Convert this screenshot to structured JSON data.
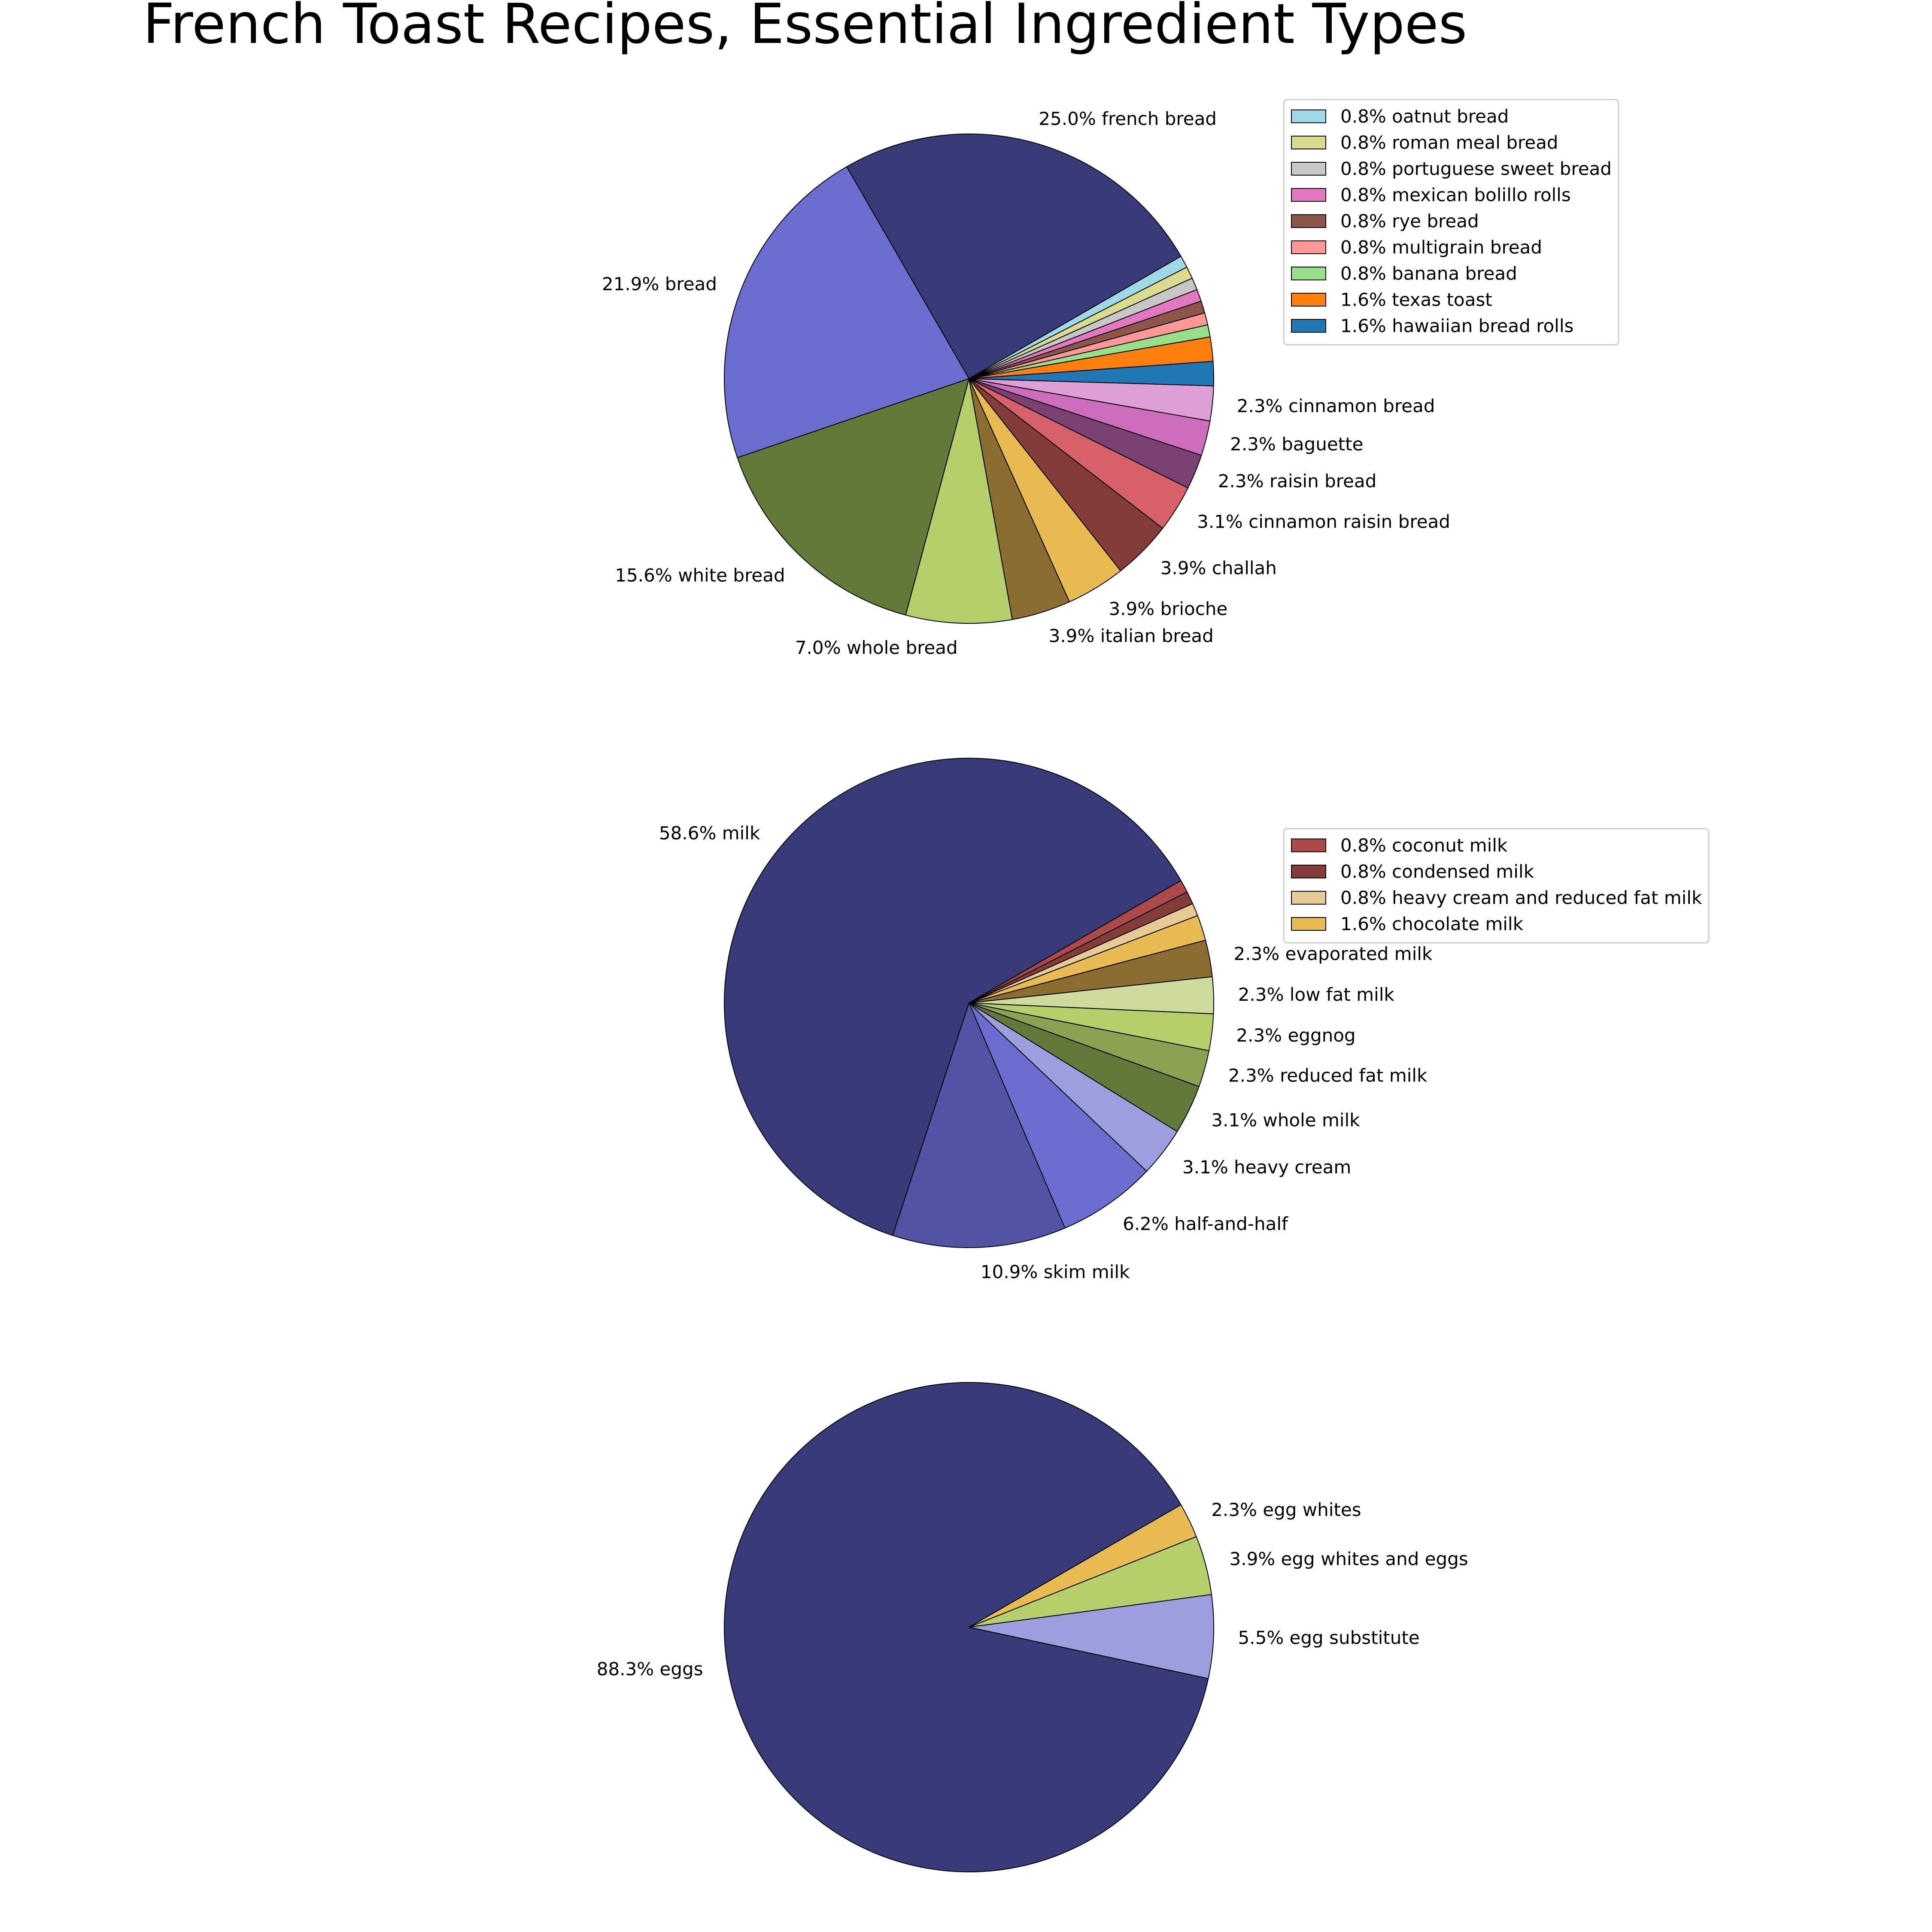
{
  "title": "French Toast Recipes, Essential Ingredient Types",
  "chart_data": [
    {
      "type": "pie",
      "slices": [
        {
          "label": "25.0% french bread",
          "value": 25.0,
          "color": "#393b79",
          "in_legend": false
        },
        {
          "label": "21.9% bread",
          "value": 21.9,
          "color": "#6b6ecf",
          "in_legend": false
        },
        {
          "label": "15.6% white bread",
          "value": 15.6,
          "color": "#637939",
          "in_legend": false
        },
        {
          "label": "7.0% whole bread",
          "value": 7.0,
          "color": "#b5cf6b",
          "in_legend": false
        },
        {
          "label": "3.9% italian bread",
          "value": 3.9,
          "color": "#8c6d31",
          "in_legend": false
        },
        {
          "label": "3.9% brioche",
          "value": 3.9,
          "color": "#e7ba52",
          "in_legend": false
        },
        {
          "label": "3.9% challah",
          "value": 3.9,
          "color": "#843c39",
          "in_legend": false
        },
        {
          "label": "3.1% cinnamon raisin bread",
          "value": 3.1,
          "color": "#d6616b",
          "in_legend": false
        },
        {
          "label": "2.3% raisin bread",
          "value": 2.3,
          "color": "#7b4173",
          "in_legend": false
        },
        {
          "label": "2.3% baguette",
          "value": 2.3,
          "color": "#ce6dbd",
          "in_legend": false
        },
        {
          "label": "2.3% cinnamon bread",
          "value": 2.3,
          "color": "#de9ed6",
          "in_legend": false
        },
        {
          "label": "1.6% hawaiian bread rolls",
          "value": 1.6,
          "color": "#1f77b4",
          "in_legend": true
        },
        {
          "label": "1.6% texas toast",
          "value": 1.6,
          "color": "#ff7f0e",
          "in_legend": true
        },
        {
          "label": "0.8% banana bread",
          "value": 0.8,
          "color": "#98df8a",
          "in_legend": true
        },
        {
          "label": "0.8% multigrain bread",
          "value": 0.8,
          "color": "#ff9896",
          "in_legend": true
        },
        {
          "label": "0.8% rye bread",
          "value": 0.8,
          "color": "#8c564b",
          "in_legend": true
        },
        {
          "label": "0.8% mexican bolillo rolls",
          "value": 0.8,
          "color": "#e377c2",
          "in_legend": true
        },
        {
          "label": "0.8% portuguese sweet bread",
          "value": 0.8,
          "color": "#c7c7c7",
          "in_legend": true
        },
        {
          "label": "0.8% roman meal bread",
          "value": 0.8,
          "color": "#dbdb8d",
          "in_legend": true
        },
        {
          "label": "0.8% oatnut bread",
          "value": 0.8,
          "color": "#9edae5",
          "in_legend": true
        }
      ]
    },
    {
      "type": "pie",
      "slices": [
        {
          "label": "58.6% milk",
          "value": 58.6,
          "color": "#393b79",
          "in_legend": false
        },
        {
          "label": "10.9% skim milk",
          "value": 10.9,
          "color": "#5254a3",
          "in_legend": false
        },
        {
          "label": "6.2% half-and-half",
          "value": 6.2,
          "color": "#6b6ecf",
          "in_legend": false
        },
        {
          "label": "3.1% heavy cream",
          "value": 3.1,
          "color": "#9c9ede",
          "in_legend": false
        },
        {
          "label": "3.1% whole milk",
          "value": 3.1,
          "color": "#637939",
          "in_legend": false
        },
        {
          "label": "2.3% reduced fat milk",
          "value": 2.3,
          "color": "#8ca252",
          "in_legend": false
        },
        {
          "label": "2.3% eggnog",
          "value": 2.3,
          "color": "#b5cf6b",
          "in_legend": false
        },
        {
          "label": "2.3% low fat milk",
          "value": 2.3,
          "color": "#cedb9c",
          "in_legend": false
        },
        {
          "label": "2.3% evaporated milk",
          "value": 2.3,
          "color": "#8c6d31",
          "in_legend": false
        },
        {
          "label": "1.6% chocolate milk",
          "value": 1.6,
          "color": "#e7ba52",
          "in_legend": true
        },
        {
          "label": "0.8% heavy cream and reduced fat milk",
          "value": 0.8,
          "color": "#e7cb94",
          "in_legend": true
        },
        {
          "label": "0.8% condensed milk",
          "value": 0.8,
          "color": "#843c39",
          "in_legend": true
        },
        {
          "label": "0.8% coconut milk",
          "value": 0.8,
          "color": "#ad494a",
          "in_legend": true
        }
      ]
    },
    {
      "type": "pie",
      "slices": [
        {
          "label": "88.3% eggs",
          "value": 88.3,
          "color": "#393b79",
          "in_legend": false
        },
        {
          "label": "5.5% egg substitute",
          "value": 5.5,
          "color": "#9c9ede",
          "in_legend": false
        },
        {
          "label": "3.9% egg whites and eggs",
          "value": 3.9,
          "color": "#b5cf6b",
          "in_legend": false
        },
        {
          "label": "2.3% egg whites",
          "value": 2.3,
          "color": "#e7ba52",
          "in_legend": false
        }
      ]
    }
  ]
}
